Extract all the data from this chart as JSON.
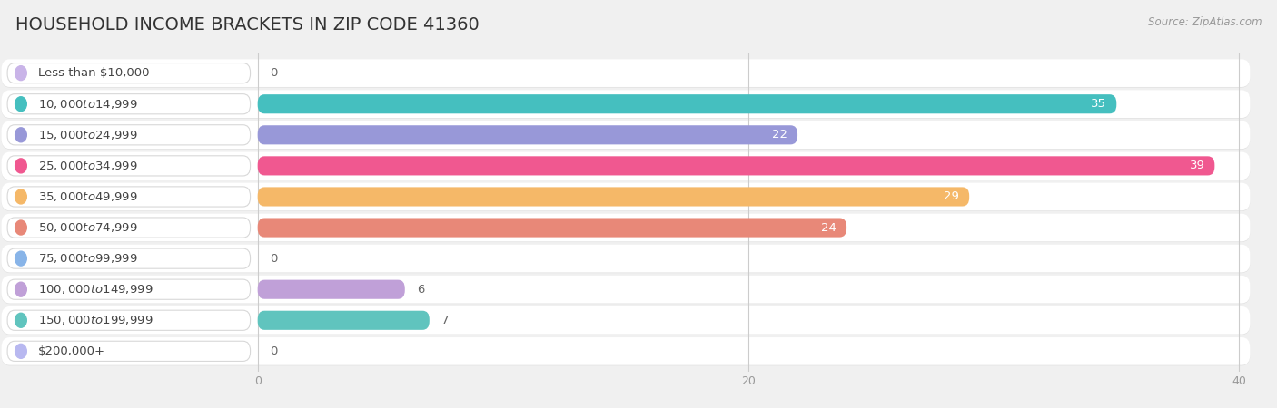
{
  "title": "HOUSEHOLD INCOME BRACKETS IN ZIP CODE 41360",
  "source": "Source: ZipAtlas.com",
  "categories": [
    "Less than $10,000",
    "$10,000 to $14,999",
    "$15,000 to $24,999",
    "$25,000 to $34,999",
    "$35,000 to $49,999",
    "$50,000 to $74,999",
    "$75,000 to $99,999",
    "$100,000 to $149,999",
    "$150,000 to $199,999",
    "$200,000+"
  ],
  "values": [
    0,
    35,
    22,
    39,
    29,
    24,
    0,
    6,
    7,
    0
  ],
  "bar_colors": [
    "#c9b4e8",
    "#45bfbf",
    "#9898d8",
    "#f05890",
    "#f5b868",
    "#e88878",
    "#88b4e8",
    "#c0a0d8",
    "#60c4be",
    "#b8b8f0"
  ],
  "xlim_max": 40,
  "xticks": [
    0,
    20,
    40
  ],
  "background_color": "#f0f0f0",
  "row_bg_color": "#ffffff",
  "row_shadow_color": "#e0e0e0",
  "title_fontsize": 14,
  "label_fontsize": 9.5,
  "value_fontsize": 9.5
}
